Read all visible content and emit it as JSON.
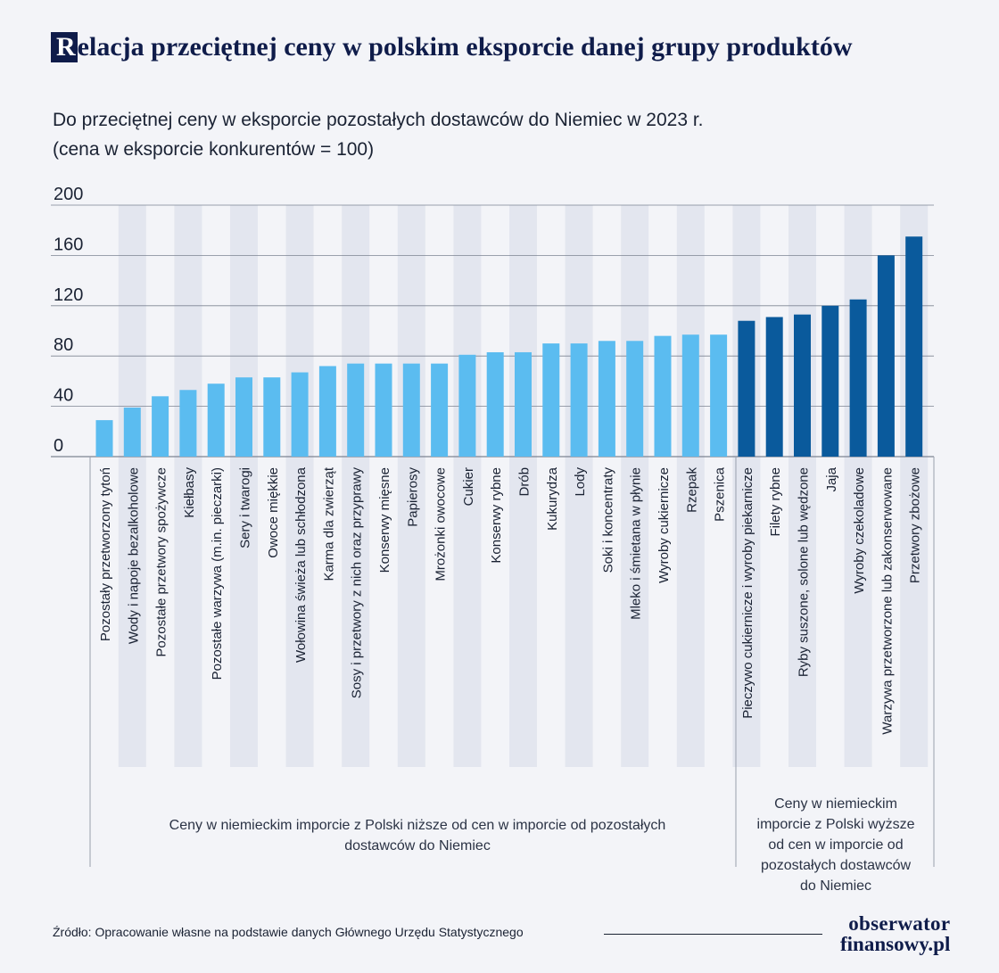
{
  "header": {
    "title_initial": "R",
    "title_rest": "elacja przeciętnej ceny w polskim eksporcie danej grupy produktów",
    "subtitle_line1": "Do przeciętnej ceny w eksporcie pozostałych dostawców do Niemiec w 2023 r.",
    "subtitle_line2": "(cena w eksporcie konkurentów = 100)"
  },
  "footer": {
    "source": "Źródło: Opracowanie własne na podstawie danych Głównego Urzędu Statystycznego",
    "logo_line1": "obserwator",
    "logo_line2": "finansowy.pl"
  },
  "colors": {
    "bar_lower": "#5bbcf0",
    "bar_higher": "#0a5a9c",
    "stripe": "#e3e6ef",
    "grid": "#7d8392",
    "text": "#1a2233",
    "title": "#0f1c4a"
  },
  "chart_data": {
    "type": "bar",
    "yticks": [
      0,
      40,
      80,
      120,
      160,
      200
    ],
    "ylim": [
      0,
      200
    ],
    "categories": [
      "Pozostały przetworzony tytoń",
      "Wody i napoje bezalkoholowe",
      "Pozostałe przetwory spożywcze",
      "Kiełbasy",
      "Pozostałe warzywa (m.in. pieczarki)",
      "Sery i twarogi",
      "Owoce miękkie",
      "Wołowina świeża lub schłodzona",
      "Karma dla zwierząt",
      "Sosy i przetwory z nich oraz przyprawy",
      "Konserwy mięsne",
      "Papierosy",
      "Mrożonki owocowe",
      "Cukier",
      "Konserwy rybne",
      "Drób",
      "Kukurydza",
      "Lody",
      "Soki i koncentraty",
      "Mleko i śmietana w płynie",
      "Wyroby cukiernicze",
      "Rzepak",
      "Pszenica",
      "Pieczywo cukiernicze i wyroby piekarnicze",
      "Filety rybne",
      "Ryby suszone, solone lub wędzone",
      "Jaja",
      "Wyroby czekoladowe",
      "Warzywa przetworzone lub zakonserwowane",
      "Przetwory zbożowe"
    ],
    "values": [
      29,
      39,
      48,
      53,
      58,
      63,
      63,
      67,
      72,
      74,
      74,
      74,
      74,
      81,
      83,
      83,
      90,
      90,
      92,
      92,
      96,
      97,
      97,
      108,
      111,
      113,
      120,
      125,
      160,
      175
    ],
    "groups": [
      {
        "label": "Ceny w niemieckim imporcie z Polski niższe od cen w imporcie od pozostałych dostawców do Niemiec",
        "from": 0,
        "to": 22
      },
      {
        "label": "Ceny w niemieckim imporcie z Polski wyższe od cen w imporcie od pozostałych dostawców do Niemiec",
        "from": 23,
        "to": 29
      }
    ]
  }
}
